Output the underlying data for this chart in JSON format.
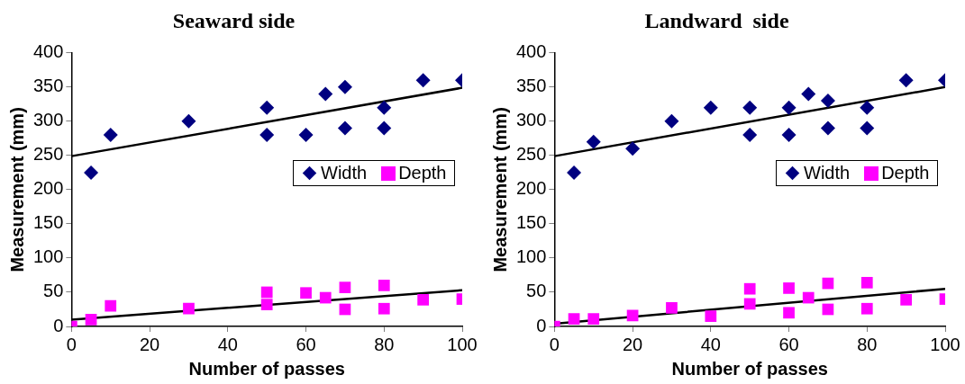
{
  "chart_data": [
    {
      "type": "scatter",
      "title": "Seaward side",
      "xlabel": "Number of passes",
      "ylabel": "Measurement (mm)",
      "xlim": [
        0,
        100
      ],
      "xticks": [
        0,
        20,
        40,
        60,
        80,
        100
      ],
      "ylim": [
        0,
        400
      ],
      "yticks": [
        0,
        50,
        100,
        150,
        200,
        250,
        300,
        350,
        400
      ],
      "grid": false,
      "legend": "right",
      "series": [
        {
          "name": "Width",
          "color": "#000080",
          "marker": "diamond",
          "x": [
            5,
            10,
            30,
            50,
            50,
            60,
            65,
            70,
            70,
            80,
            80,
            90,
            100
          ],
          "values": [
            225,
            280,
            300,
            320,
            280,
            280,
            340,
            350,
            290,
            320,
            290,
            360,
            360
          ]
        },
        {
          "name": "Depth",
          "color": "#ff00ff",
          "marker": "square",
          "x": [
            0,
            5,
            10,
            30,
            50,
            50,
            60,
            65,
            70,
            70,
            80,
            80,
            90,
            100
          ],
          "values": [
            0,
            10,
            30,
            26,
            50,
            32,
            49,
            42,
            57,
            25,
            60,
            26,
            39,
            40
          ]
        },
        {
          "type": "line",
          "color": "#000000",
          "marker": "none",
          "x": [
            0,
            100
          ],
          "values": [
            249,
            349
          ]
        },
        {
          "type": "line",
          "color": "#000000",
          "marker": "none",
          "x": [
            0,
            100
          ],
          "values": [
            10,
            53
          ]
        }
      ]
    },
    {
      "type": "scatter",
      "title": "Landward  side",
      "xlabel": "Number of passes",
      "ylabel": "Measurement (mm)",
      "xlim": [
        0,
        100
      ],
      "xticks": [
        0,
        20,
        40,
        60,
        80,
        100
      ],
      "ylim": [
        0,
        400
      ],
      "yticks": [
        0,
        50,
        100,
        150,
        200,
        250,
        300,
        350,
        400
      ],
      "grid": false,
      "legend": "right",
      "series": [
        {
          "name": "Width",
          "color": "#000080",
          "marker": "diamond",
          "x": [
            5,
            10,
            20,
            30,
            40,
            50,
            50,
            60,
            60,
            65,
            70,
            70,
            80,
            80,
            90,
            100
          ],
          "values": [
            225,
            270,
            260,
            300,
            320,
            320,
            280,
            320,
            280,
            340,
            330,
            290,
            320,
            290,
            360,
            360
          ]
        },
        {
          "name": "Depth",
          "color": "#ff00ff",
          "marker": "square",
          "x": [
            0,
            5,
            10,
            20,
            30,
            40,
            50,
            50,
            60,
            60,
            65,
            70,
            70,
            80,
            80,
            90,
            100
          ],
          "values": [
            0,
            11,
            11,
            16,
            27,
            15,
            55,
            33,
            56,
            20,
            42,
            63,
            25,
            64,
            26,
            39,
            40
          ]
        },
        {
          "type": "line",
          "color": "#000000",
          "marker": "none",
          "x": [
            0,
            100
          ],
          "values": [
            249,
            350
          ]
        },
        {
          "type": "line",
          "color": "#000000",
          "marker": "none",
          "x": [
            0,
            100
          ],
          "values": [
            4,
            55
          ]
        }
      ]
    }
  ]
}
